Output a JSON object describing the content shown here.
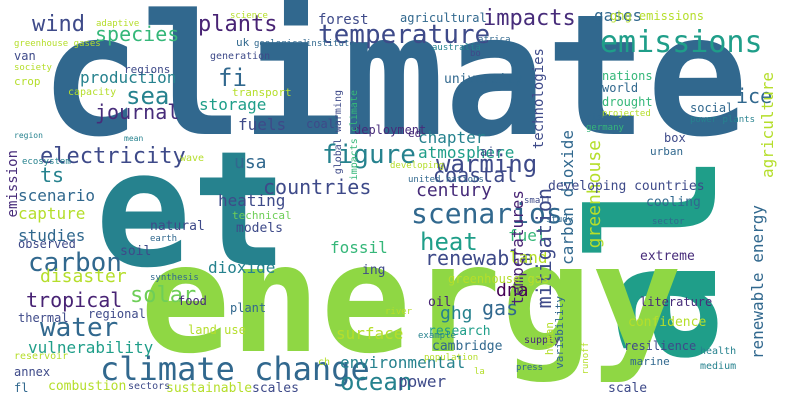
{
  "words": [
    {
      "text": "climate",
      "color": "#31688e"
    },
    {
      "text": "et",
      "color": "#26828e"
    },
    {
      "text": "al",
      "color": "#1f9e89"
    },
    {
      "text": "energy",
      "color": "#b5de2b"
    },
    {
      "text": "climate change",
      "color": "#31688e"
    },
    {
      "text": "emissions",
      "color": "#1f9e89"
    },
    {
      "text": "scenarios",
      "color": "#31688e"
    },
    {
      "text": "temperature",
      "color": "#3e4a89"
    },
    {
      "text": "impacts",
      "color": "#472c7a"
    },
    {
      "text": "figure",
      "color": "#26828e"
    },
    {
      "text": "heat",
      "color": "#1f9e89"
    },
    {
      "text": "warming",
      "color": "#3e4a89"
    },
    {
      "text": "carbon",
      "color": "#31688e"
    },
    {
      "text": "water",
      "color": "#31688e"
    },
    {
      "text": "ocean",
      "color": "#26828e"
    },
    {
      "text": "electricity",
      "color": "#3e4a89"
    },
    {
      "text": "wind",
      "color": "#3e4a89"
    },
    {
      "text": "plants",
      "color": "#482374"
    },
    {
      "text": "species",
      "color": "#35b779"
    },
    {
      "text": "sea",
      "color": "#26828e"
    },
    {
      "text": "fi",
      "color": "#31688e"
    },
    {
      "text": "journal",
      "color": "#472c7a"
    },
    {
      "text": "solar",
      "color": "#6ece58"
    },
    {
      "text": "countries",
      "color": "#3e4a89"
    },
    {
      "text": "tropical",
      "color": "#482374"
    },
    {
      "text": "disaster",
      "color": "#b5de2b"
    },
    {
      "text": "renewable",
      "color": "#3e4a89"
    },
    {
      "text": "coastal",
      "color": "#3e4a89"
    },
    {
      "text": "century",
      "color": "#472c7a"
    },
    {
      "text": "usa",
      "color": "#31688e"
    },
    {
      "text": "ts",
      "color": "#26828e"
    },
    {
      "text": "ice",
      "color": "#31688e"
    },
    {
      "text": "dna",
      "color": "#440154"
    },
    {
      "text": "gas",
      "color": "#31688e"
    },
    {
      "text": "ghg",
      "color": "#26828e"
    },
    {
      "text": "fossil",
      "color": "#35b779"
    },
    {
      "text": "fuel",
      "color": "#35b779"
    },
    {
      "text": "land",
      "color": "#b5de2b"
    },
    {
      "text": "heating",
      "color": "#3e4a89"
    },
    {
      "text": "production",
      "color": "#26828e"
    },
    {
      "text": "storage",
      "color": "#1f9e89"
    },
    {
      "text": "fuels",
      "color": "#3e4a89"
    },
    {
      "text": "forest",
      "color": "#3e4a89"
    },
    {
      "text": "gases",
      "color": "#31688e"
    },
    {
      "text": "scenario",
      "color": "#31688e"
    },
    {
      "text": "capture",
      "color": "#b5de2b"
    },
    {
      "text": "studies",
      "color": "#31688e"
    },
    {
      "text": "dioxide",
      "color": "#26828e"
    },
    {
      "text": "atmosphere",
      "color": "#1f9e89"
    },
    {
      "text": "chapter",
      "color": "#26828e"
    },
    {
      "text": "vulnerability",
      "color": "#1f9e89"
    },
    {
      "text": "environmental",
      "color": "#26828e"
    },
    {
      "text": "surface",
      "color": "#b5de2b"
    },
    {
      "text": "power",
      "color": "#3e4a89"
    },
    {
      "text": "mitigation",
      "color": "#3e4a89"
    },
    {
      "text": "greenhouse",
      "color": "#b5de2b"
    },
    {
      "text": "carbon dioxide",
      "color": "#31688e"
    },
    {
      "text": "temperatures",
      "color": "#482374"
    },
    {
      "text": "renewable energy",
      "color": "#31688e"
    },
    {
      "text": "agriculture",
      "color": "#b5de2b"
    },
    {
      "text": "technologies",
      "color": "#3e4a89"
    },
    {
      "text": "emission",
      "color": "#472c7a"
    },
    {
      "text": "developing countries",
      "color": "#3e4a89"
    },
    {
      "text": "cooling",
      "color": "#31688e"
    },
    {
      "text": "soil",
      "color": "#3e4a89"
    },
    {
      "text": "natural",
      "color": "#3e4a89"
    },
    {
      "text": "models",
      "color": "#3e4a89"
    },
    {
      "text": "technical",
      "color": "#6ece58"
    },
    {
      "text": "observed",
      "color": "#3e4a89"
    },
    {
      "text": "extreme",
      "color": "#472c7a"
    },
    {
      "text": "ing",
      "color": "#3e4a89"
    },
    {
      "text": "greenhouse gas",
      "color": "#b5de2b"
    },
    {
      "text": "research",
      "color": "#1f9e89"
    },
    {
      "text": "cambridge",
      "color": "#31688e"
    },
    {
      "text": "oil",
      "color": "#482374"
    },
    {
      "text": "regional",
      "color": "#3e4a89"
    },
    {
      "text": "plant",
      "color": "#31688e"
    },
    {
      "text": "food",
      "color": "#472c7a"
    },
    {
      "text": "land use",
      "color": "#b5de2b"
    },
    {
      "text": "thermal",
      "color": "#3e4a89"
    },
    {
      "text": "combustion",
      "color": "#b5de2b"
    },
    {
      "text": "sustainable",
      "color": "#b5de2b"
    },
    {
      "text": "scales",
      "color": "#3e4a89"
    },
    {
      "text": "scale",
      "color": "#3e4a89"
    },
    {
      "text": "sectors",
      "color": "#3e4a89"
    },
    {
      "text": "annex",
      "color": "#3e4a89"
    },
    {
      "text": "fl",
      "color": "#31688e"
    },
    {
      "text": "ch",
      "color": "#b5de2b"
    },
    {
      "text": "reservoir",
      "color": "#b5de2b"
    },
    {
      "text": "confidence",
      "color": "#b5de2b"
    },
    {
      "text": "literature",
      "color": "#472c7a"
    },
    {
      "text": "health",
      "color": "#26828e"
    },
    {
      "text": "medium",
      "color": "#26828e"
    },
    {
      "text": "resilience",
      "color": "#3e4a89"
    },
    {
      "text": "marine",
      "color": "#31688e"
    },
    {
      "text": "population",
      "color": "#b5de2b"
    },
    {
      "text": "press",
      "color": "#31688e"
    },
    {
      "text": "supply",
      "color": "#472c7a"
    },
    {
      "text": "example",
      "color": "#26828e"
    },
    {
      "text": "river",
      "color": "#b5de2b"
    },
    {
      "text": "box",
      "color": "#3e4a89"
    },
    {
      "text": "social",
      "color": "#31688e"
    },
    {
      "text": "power plants",
      "color": "#26828e"
    },
    {
      "text": "nations",
      "color": "#35b779"
    },
    {
      "text": "world",
      "color": "#31688e"
    },
    {
      "text": "drought",
      "color": "#35b779"
    },
    {
      "text": "projected",
      "color": "#b5de2b"
    },
    {
      "text": "rise",
      "color": "#31688e"
    },
    {
      "text": "germany",
      "color": "#35b779"
    },
    {
      "text": "sector",
      "color": "#31688e"
    },
    {
      "text": "study",
      "color": "#31688e"
    },
    {
      "text": "university",
      "color": "#31688e"
    },
    {
      "text": "deployment",
      "color": "#472c7a"
    },
    {
      "text": "united nations",
      "color": "#31688e"
    },
    {
      "text": "developing",
      "color": "#b5de2b"
    },
    {
      "text": "small",
      "color": "#3e4a89"
    },
    {
      "text": "air",
      "color": "#3e4a89"
    },
    {
      "text": "urban",
      "color": "#31688e"
    },
    {
      "text": "ed",
      "color": "#472c7a"
    },
    {
      "text": "coal",
      "color": "#3e4a89"
    },
    {
      "text": "global warming",
      "color": "#3e4a89"
    },
    {
      "text": "impacts climate",
      "color": "#35b779"
    },
    {
      "text": "transport",
      "color": "#b5de2b"
    },
    {
      "text": "generation",
      "color": "#3e4a89"
    },
    {
      "text": "uk",
      "color": "#31688e"
    },
    {
      "text": "geological",
      "color": "#31688e"
    },
    {
      "text": "institute",
      "color": "#31688e"
    },
    {
      "text": "australia",
      "color": "#26828e"
    },
    {
      "text": "agricultural",
      "color": "#31688e"
    },
    {
      "text": "ghg emissions",
      "color": "#b5de2b"
    },
    {
      "text": "africa",
      "color": "#31688e"
    },
    {
      "text": "science",
      "color": "#b5de2b"
    },
    {
      "text": "adaptive",
      "color": "#b5de2b"
    },
    {
      "text": "greenhouse gases",
      "color": "#b5de2b"
    },
    {
      "text": "van",
      "color": "#3e4a89"
    },
    {
      "text": "society",
      "color": "#b5de2b"
    },
    {
      "text": "crop",
      "color": "#b5de2b"
    },
    {
      "text": "regions",
      "color": "#3e4a89"
    },
    {
      "text": "capacity",
      "color": "#b5de2b"
    },
    {
      "text": "region",
      "color": "#26828e"
    },
    {
      "text": "mean",
      "color": "#26828e"
    },
    {
      "text": "wave",
      "color": "#b5de2b"
    },
    {
      "text": "ecosystem",
      "color": "#26828e"
    },
    {
      "text": "earth",
      "color": "#31688e"
    },
    {
      "text": "synthesis",
      "color": "#31688e"
    },
    {
      "text": "human",
      "color": "#b5de2b"
    },
    {
      "text": "variability",
      "color": "#31688e"
    },
    {
      "text": "runoff",
      "color": "#b5de2b"
    },
    {
      "text": "la",
      "color": "#b5de2b"
    },
    {
      "text": "bo",
      "color": "#3e4a89"
    }
  ]
}
